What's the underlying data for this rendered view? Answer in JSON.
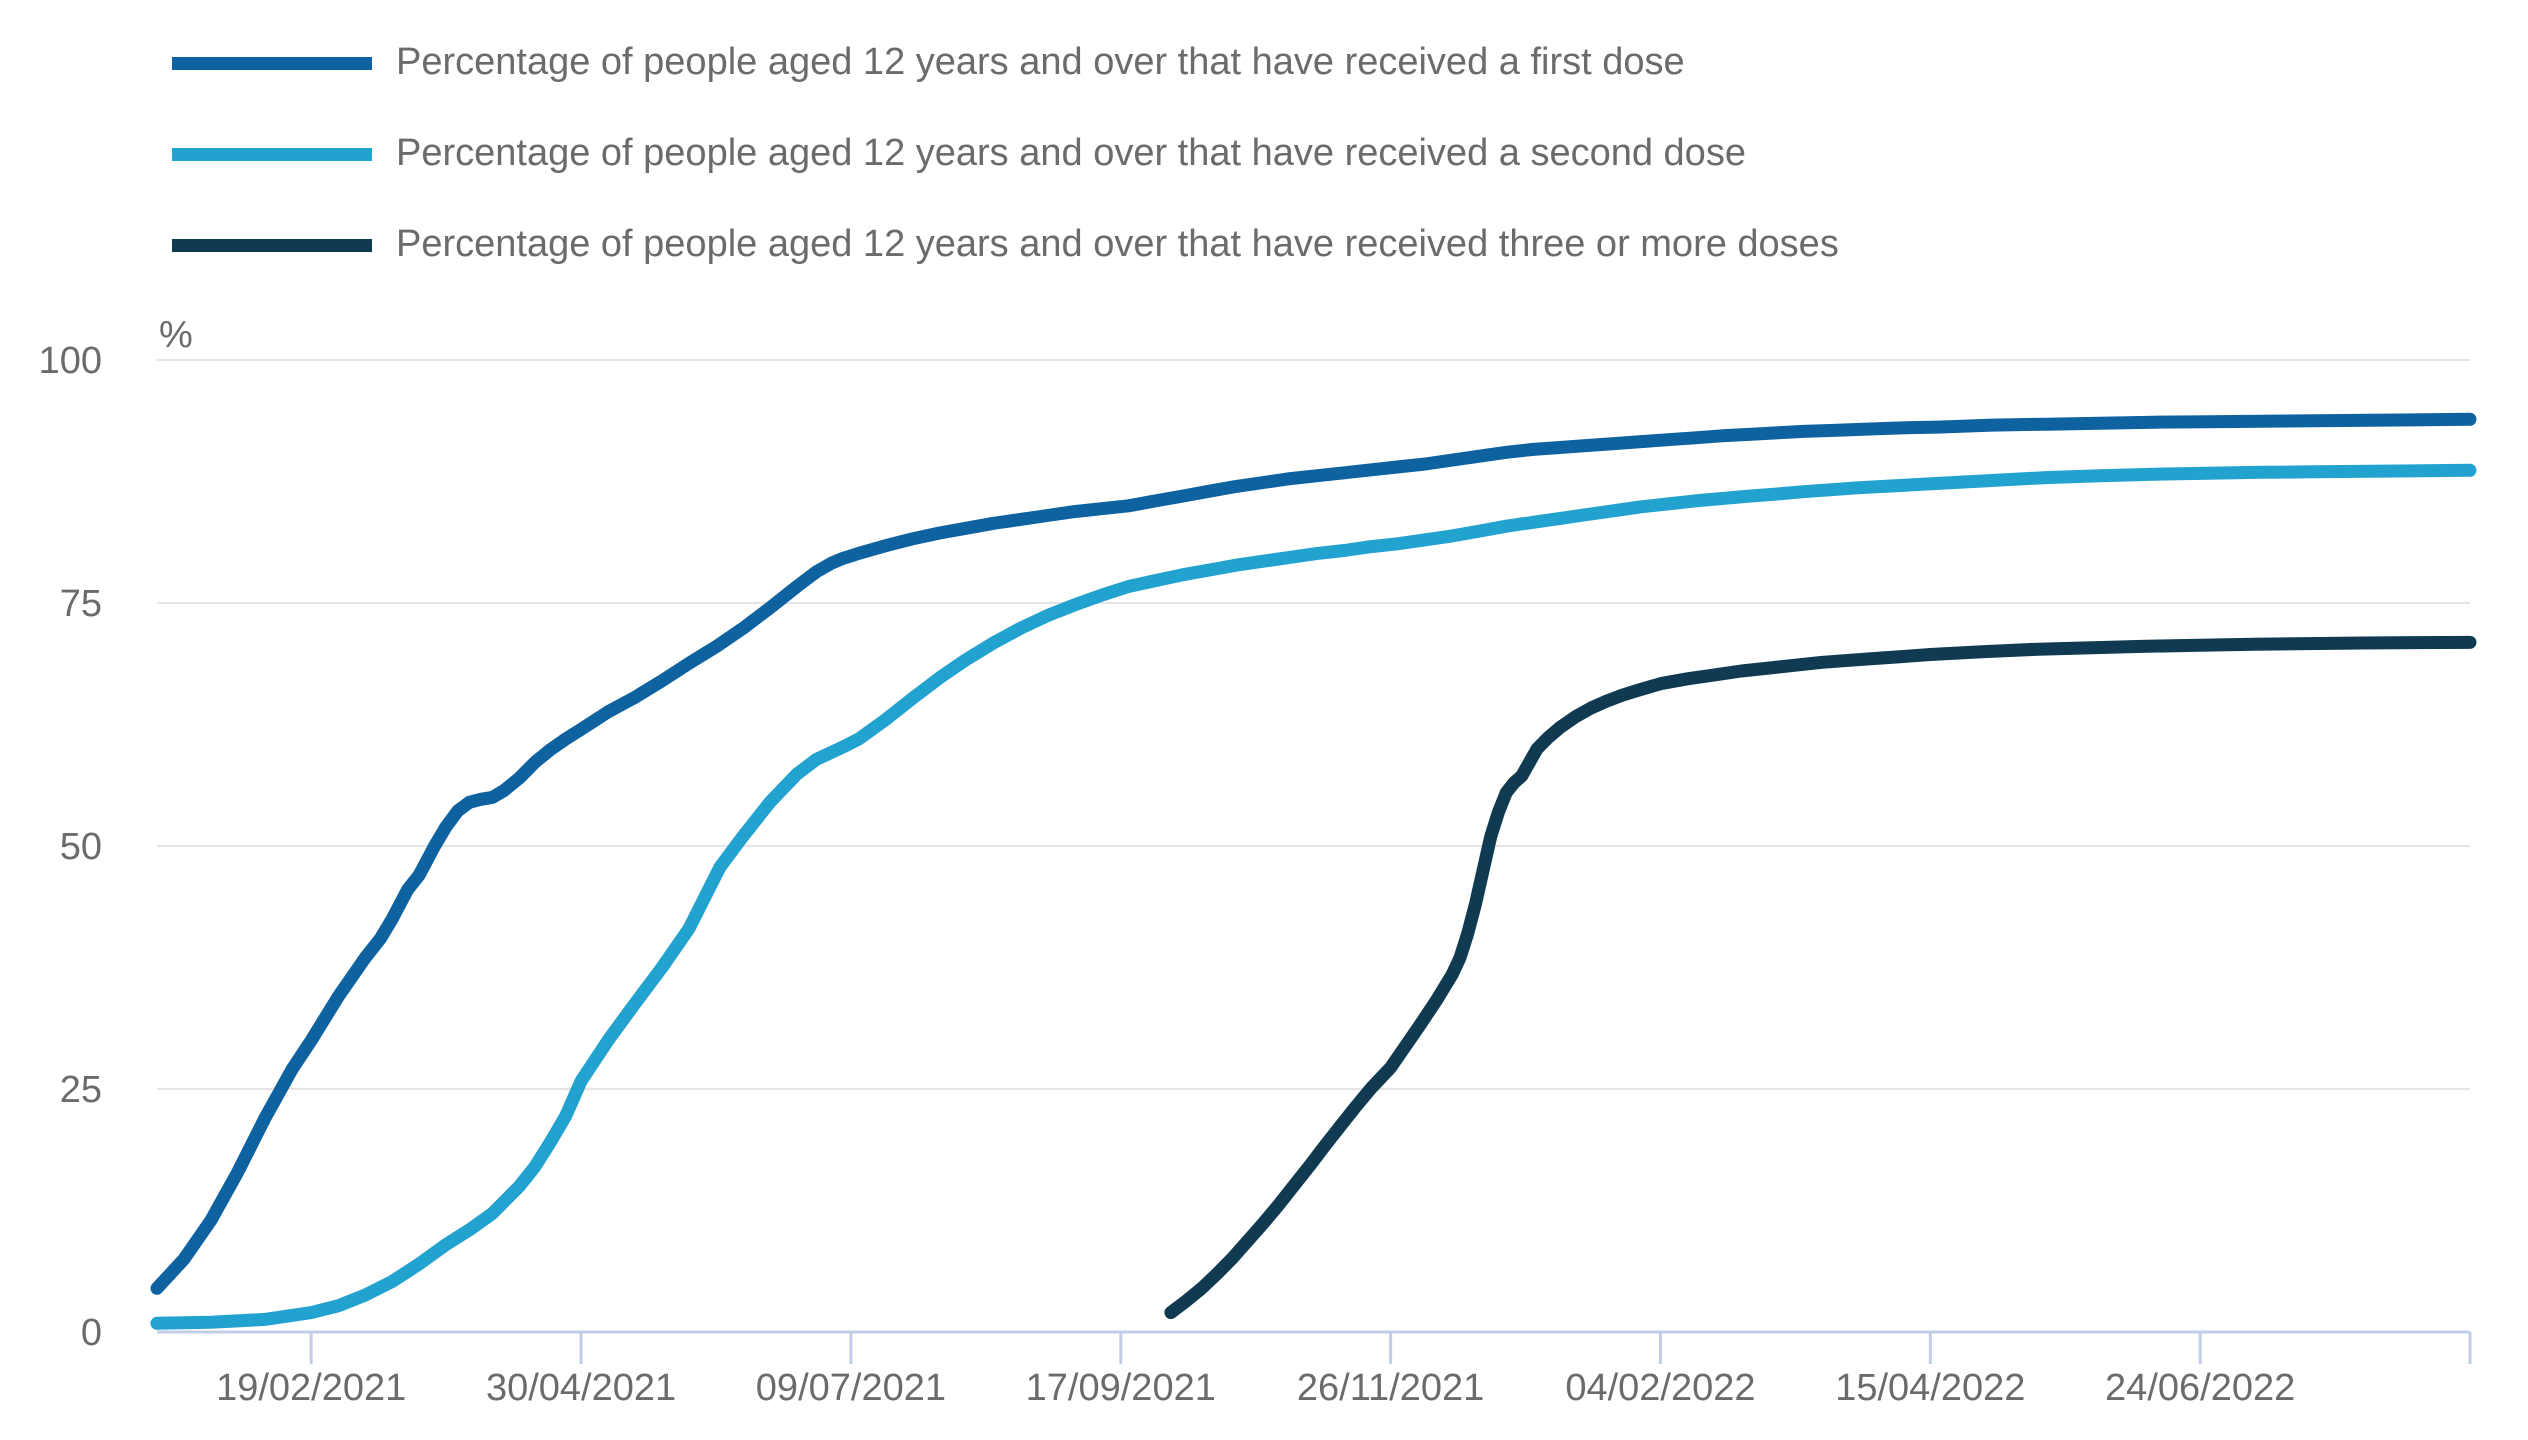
{
  "page": {
    "background": "#ffffff"
  },
  "legend": {
    "items": [
      {
        "label": "Percentage of people aged 12 years and over that have received a first dose",
        "color": "#0f62a0"
      },
      {
        "label": "Percentage of people aged 12 years and over that have received a second dose",
        "color": "#22a2cf"
      },
      {
        "label": "Percentage of people aged 12 years and over that have received three or more doses",
        "color": "#0f3a51"
      }
    ]
  },
  "style": {
    "grid_color": "#e4e4e4",
    "axis_color": "#c2cde7",
    "tick_text_color": "#6b6b6b",
    "line_width": 13
  },
  "chart_data": {
    "type": "line",
    "title": "",
    "ylabel": "%",
    "unit_label": "%",
    "ylim": [
      0,
      100
    ],
    "y_ticks": [
      0,
      25,
      50,
      75,
      100
    ],
    "grid": true,
    "legend_position": "top-left",
    "x_axis_note": "x values are days since first data point (10/01/2021); axis spans 600 days",
    "x_domain_days": [
      0,
      600
    ],
    "x_tick_days": [
      40,
      110,
      180,
      250,
      320,
      390,
      460,
      530
    ],
    "x_tick_labels": [
      "19/02/2021",
      "30/04/2021",
      "09/07/2021",
      "17/09/2021",
      "26/11/2021",
      "04/02/2022",
      "15/04/2022",
      "24/06/2022"
    ],
    "series": [
      {
        "name": "Percentage of people aged 12 years and over that have received a first dose",
        "color": "#0f62a0",
        "points": [
          [
            0,
            4.5
          ],
          [
            7,
            7.5
          ],
          [
            14,
            11.5
          ],
          [
            21,
            16.5
          ],
          [
            28,
            22
          ],
          [
            35,
            27
          ],
          [
            40,
            30
          ],
          [
            47,
            34.5
          ],
          [
            54,
            38.5
          ],
          [
            58,
            40.5
          ],
          [
            61,
            42.5
          ],
          [
            65,
            45.5
          ],
          [
            68,
            47
          ],
          [
            72,
            50
          ],
          [
            75,
            52
          ],
          [
            78,
            53.6
          ],
          [
            81,
            54.5
          ],
          [
            84,
            54.8
          ],
          [
            87,
            55
          ],
          [
            90,
            55.7
          ],
          [
            94,
            57
          ],
          [
            98,
            58.6
          ],
          [
            102,
            59.9
          ],
          [
            106,
            61
          ],
          [
            110,
            62
          ],
          [
            117,
            63.8
          ],
          [
            124,
            65.3
          ],
          [
            131,
            67
          ],
          [
            138,
            68.8
          ],
          [
            145,
            70.5
          ],
          [
            152,
            72.4
          ],
          [
            159,
            74.5
          ],
          [
            166,
            76.7
          ],
          [
            171,
            78.2
          ],
          [
            175,
            79.1
          ],
          [
            178,
            79.6
          ],
          [
            182,
            80.1
          ],
          [
            189,
            80.9
          ],
          [
            196,
            81.6
          ],
          [
            203,
            82.2
          ],
          [
            210,
            82.7
          ],
          [
            217,
            83.2
          ],
          [
            224,
            83.6
          ],
          [
            231,
            84
          ],
          [
            238,
            84.4
          ],
          [
            245,
            84.7
          ],
          [
            252,
            85
          ],
          [
            259,
            85.5
          ],
          [
            266,
            86
          ],
          [
            273,
            86.5
          ],
          [
            280,
            87
          ],
          [
            287,
            87.4
          ],
          [
            294,
            87.8
          ],
          [
            301,
            88.1
          ],
          [
            308,
            88.4
          ],
          [
            315,
            88.7
          ],
          [
            322,
            89
          ],
          [
            329,
            89.3
          ],
          [
            336,
            89.7
          ],
          [
            343,
            90.1
          ],
          [
            350,
            90.5
          ],
          [
            357,
            90.8
          ],
          [
            364,
            91
          ],
          [
            371,
            91.2
          ],
          [
            378,
            91.4
          ],
          [
            385,
            91.6
          ],
          [
            392,
            91.8
          ],
          [
            399,
            92
          ],
          [
            406,
            92.2
          ],
          [
            413,
            92.35
          ],
          [
            420,
            92.5
          ],
          [
            427,
            92.65
          ],
          [
            434,
            92.75
          ],
          [
            441,
            92.85
          ],
          [
            448,
            92.95
          ],
          [
            455,
            93.05
          ],
          [
            462,
            93.1
          ],
          [
            476,
            93.3
          ],
          [
            490,
            93.4
          ],
          [
            504,
            93.5
          ],
          [
            518,
            93.6
          ],
          [
            532,
            93.65
          ],
          [
            546,
            93.7
          ],
          [
            560,
            93.75
          ],
          [
            574,
            93.8
          ],
          [
            588,
            93.85
          ],
          [
            600,
            93.9
          ]
        ]
      },
      {
        "name": "Percentage of people aged 12 years and over that have received a second dose",
        "color": "#22a2cf",
        "points": [
          [
            0,
            0.9
          ],
          [
            14,
            1
          ],
          [
            28,
            1.3
          ],
          [
            40,
            2
          ],
          [
            47,
            2.7
          ],
          [
            54,
            3.8
          ],
          [
            61,
            5.2
          ],
          [
            68,
            7
          ],
          [
            75,
            9
          ],
          [
            81,
            10.5
          ],
          [
            87,
            12.2
          ],
          [
            94,
            15
          ],
          [
            98,
            17
          ],
          [
            102,
            19.5
          ],
          [
            106,
            22.2
          ],
          [
            110,
            25.8
          ],
          [
            117,
            30
          ],
          [
            124,
            33.8
          ],
          [
            131,
            37.5
          ],
          [
            138,
            41.5
          ],
          [
            146,
            47.8
          ],
          [
            152,
            51
          ],
          [
            159,
            54.5
          ],
          [
            166,
            57.4
          ],
          [
            171,
            58.9
          ],
          [
            178,
            60.2
          ],
          [
            182,
            61
          ],
          [
            189,
            63
          ],
          [
            196,
            65.2
          ],
          [
            203,
            67.3
          ],
          [
            210,
            69.2
          ],
          [
            217,
            70.9
          ],
          [
            224,
            72.4
          ],
          [
            231,
            73.7
          ],
          [
            238,
            74.8
          ],
          [
            245,
            75.8
          ],
          [
            252,
            76.7
          ],
          [
            259,
            77.3
          ],
          [
            266,
            77.9
          ],
          [
            273,
            78.4
          ],
          [
            280,
            78.9
          ],
          [
            287,
            79.3
          ],
          [
            294,
            79.7
          ],
          [
            301,
            80.1
          ],
          [
            308,
            80.4
          ],
          [
            315,
            80.8
          ],
          [
            322,
            81.1
          ],
          [
            329,
            81.5
          ],
          [
            336,
            81.9
          ],
          [
            343,
            82.4
          ],
          [
            350,
            82.9
          ],
          [
            357,
            83.3
          ],
          [
            364,
            83.7
          ],
          [
            371,
            84.1
          ],
          [
            378,
            84.5
          ],
          [
            385,
            84.9
          ],
          [
            392,
            85.2
          ],
          [
            399,
            85.5
          ],
          [
            406,
            85.75
          ],
          [
            413,
            86
          ],
          [
            420,
            86.2
          ],
          [
            427,
            86.45
          ],
          [
            434,
            86.65
          ],
          [
            441,
            86.85
          ],
          [
            448,
            87
          ],
          [
            455,
            87.15
          ],
          [
            462,
            87.3
          ],
          [
            476,
            87.6
          ],
          [
            490,
            87.9
          ],
          [
            504,
            88.1
          ],
          [
            518,
            88.25
          ],
          [
            532,
            88.35
          ],
          [
            546,
            88.45
          ],
          [
            560,
            88.5
          ],
          [
            574,
            88.55
          ],
          [
            588,
            88.6
          ],
          [
            600,
            88.65
          ]
        ]
      },
      {
        "name": "Percentage of people aged 12 years and over that have received three or more doses",
        "color": "#0f3a51",
        "points": [
          [
            263,
            2
          ],
          [
            267,
            3.2
          ],
          [
            271,
            4.5
          ],
          [
            275,
            6
          ],
          [
            279,
            7.6
          ],
          [
            283,
            9.4
          ],
          [
            287,
            11.2
          ],
          [
            291,
            13.1
          ],
          [
            295,
            15.1
          ],
          [
            299,
            17.1
          ],
          [
            303,
            19.2
          ],
          [
            307,
            21.2
          ],
          [
            311,
            23.2
          ],
          [
            315,
            25.1
          ],
          [
            320,
            27.2
          ],
          [
            324,
            29.5
          ],
          [
            328,
            31.8
          ],
          [
            332,
            34.2
          ],
          [
            336,
            36.8
          ],
          [
            338,
            38.5
          ],
          [
            340,
            41
          ],
          [
            342,
            44
          ],
          [
            344,
            47.5
          ],
          [
            346,
            51
          ],
          [
            348,
            53.5
          ],
          [
            350,
            55.5
          ],
          [
            352,
            56.5
          ],
          [
            354,
            57.2
          ],
          [
            356,
            58.6
          ],
          [
            358,
            60
          ],
          [
            361,
            61.2
          ],
          [
            364,
            62.2
          ],
          [
            368,
            63.3
          ],
          [
            372,
            64.2
          ],
          [
            376,
            64.9
          ],
          [
            380,
            65.5
          ],
          [
            384,
            66
          ],
          [
            390,
            66.7
          ],
          [
            397,
            67.2
          ],
          [
            404,
            67.6
          ],
          [
            411,
            68
          ],
          [
            418,
            68.3
          ],
          [
            425,
            68.6
          ],
          [
            432,
            68.9
          ],
          [
            439,
            69.1
          ],
          [
            446,
            69.3
          ],
          [
            453,
            69.5
          ],
          [
            460,
            69.7
          ],
          [
            474,
            70
          ],
          [
            488,
            70.25
          ],
          [
            502,
            70.4
          ],
          [
            516,
            70.55
          ],
          [
            530,
            70.65
          ],
          [
            544,
            70.75
          ],
          [
            558,
            70.82
          ],
          [
            572,
            70.88
          ],
          [
            586,
            70.93
          ],
          [
            600,
            70.95
          ]
        ]
      }
    ]
  }
}
